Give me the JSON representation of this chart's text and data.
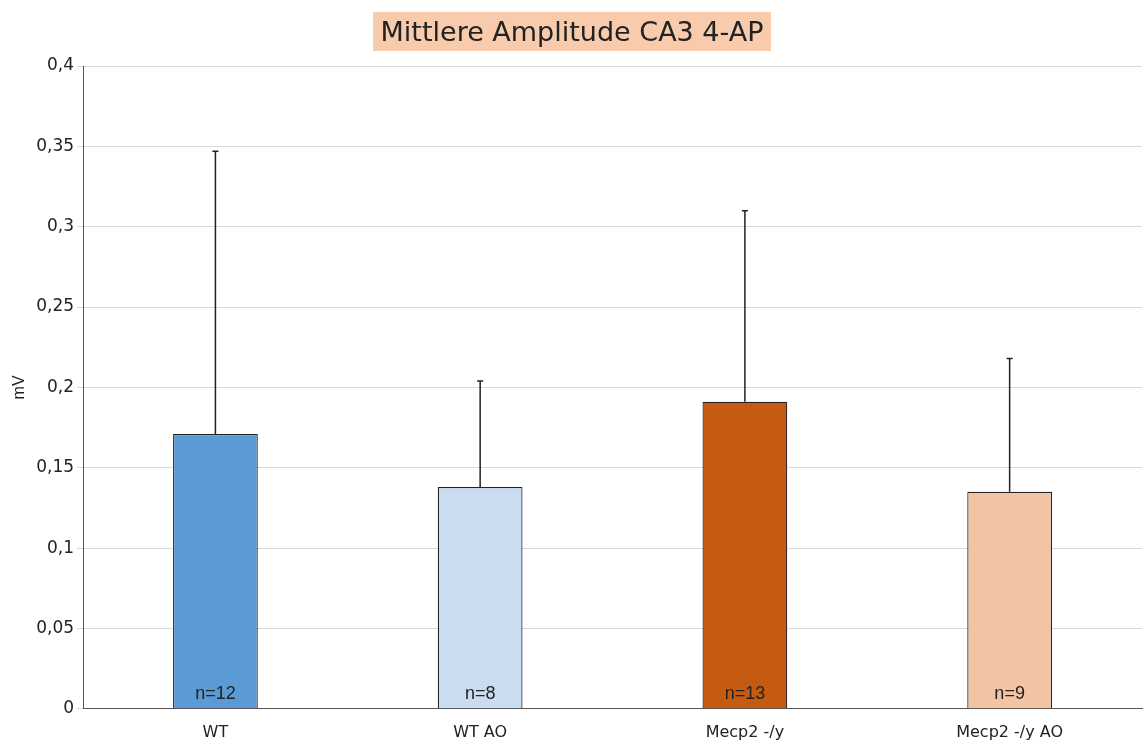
{
  "chart_data": {
    "type": "bar",
    "title": "Mittlere Amplitude CA3 4-AP",
    "ylabel": "mV",
    "categories": [
      "WT",
      "WT AO",
      "Mecp2 -/y",
      "Mecp2 -/y AO"
    ],
    "values": [
      0.171,
      0.138,
      0.191,
      0.135
    ],
    "colors": [
      "#5b9bd5",
      "#c9dcf0",
      "#c55a11",
      "#f2c4a4"
    ],
    "errors": [
      [
        0.171,
        0.347
      ],
      [
        0.138,
        0.204
      ],
      [
        0.191,
        0.31
      ],
      [
        0.135,
        0.218
      ]
    ],
    "ylim": [
      0,
      0.4
    ],
    "yticks": [
      {
        "value": 0,
        "label": "0"
      },
      {
        "value": 0.05,
        "label": "0,05"
      },
      {
        "value": 0.1,
        "label": "0,1"
      },
      {
        "value": 0.15,
        "label": "0,15"
      },
      {
        "value": 0.2,
        "label": "0,2"
      },
      {
        "value": 0.25,
        "label": "0,25"
      },
      {
        "value": 0.3,
        "label": "0,3"
      },
      {
        "value": 0.35,
        "label": "0,35"
      },
      {
        "value": 0.4,
        "label": "0,4"
      }
    ],
    "grid": "y",
    "legend": false,
    "annotations": [
      "n=12",
      "n=8",
      "n=13",
      "n=9"
    ]
  }
}
